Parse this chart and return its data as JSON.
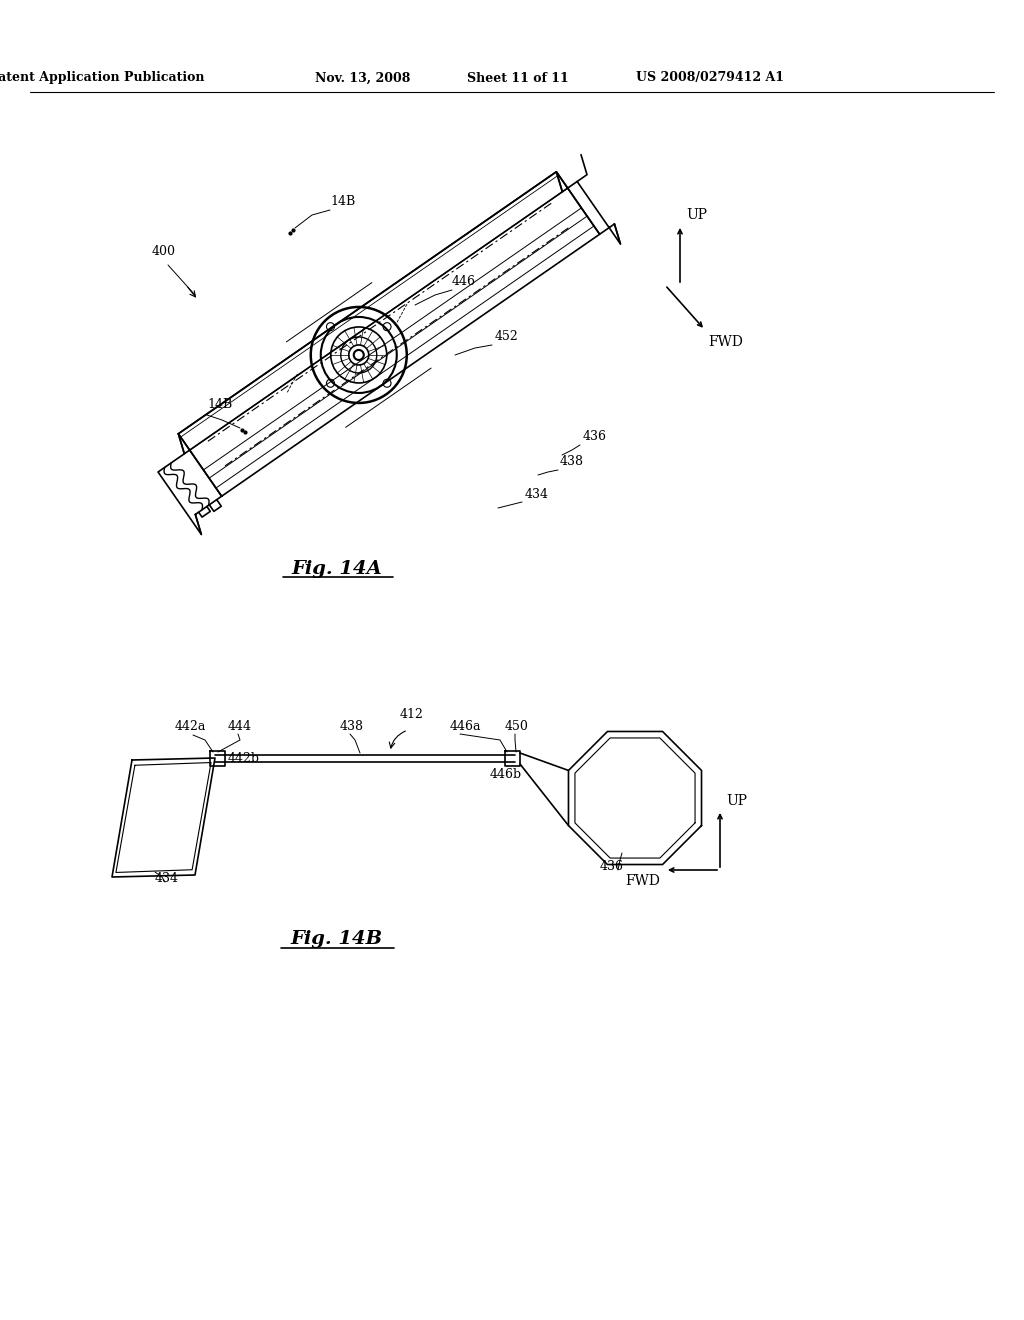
{
  "bg_color": "#ffffff",
  "header_text": "Patent Application Publication",
  "header_date": "Nov. 13, 2008",
  "header_sheet": "Sheet 11 of 11",
  "header_patent": "US 2008/0279412 A1",
  "fig14a_label": "Fig. 14A",
  "fig14b_label": "Fig. 14B",
  "line_color": "#000000",
  "lw": 1.2,
  "tlw": 0.7
}
